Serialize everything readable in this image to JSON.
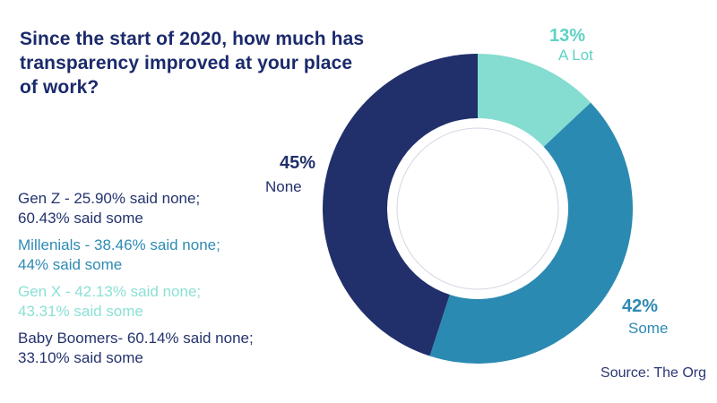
{
  "title": {
    "lines": [
      "Since the start of 2020, how much has",
      "transparency improved at your place",
      "of work?"
    ],
    "color": "#1b2a6b"
  },
  "chart_data": {
    "type": "pie",
    "variant": "donut",
    "title": "Since the start of 2020, how much has transparency improved at your place of work?",
    "units": "percent",
    "start_angle_deg": 0,
    "direction": "clockwise",
    "slices": [
      {
        "label": "A Lot",
        "value": 13,
        "pct_label": "13%",
        "color": "#85dcd1",
        "label_color": "#5fd2c5"
      },
      {
        "label": "Some",
        "value": 42,
        "pct_label": "42%",
        "color": "#2b8ab1",
        "label_color": "#2e8ab3"
      },
      {
        "label": "None",
        "value": 45,
        "pct_label": "45%",
        "color": "#21306b",
        "label_color": "#21306b"
      }
    ],
    "inner_ring_color": "#d4d6e3",
    "legend_position": "around-slices"
  },
  "annotations": [
    {
      "lines": [
        "Gen Z - 25.90% said none;",
        "60.43% said some"
      ],
      "color": "#24336e"
    },
    {
      "lines": [
        "Millenials - 38.46% said none;",
        "44% said some"
      ],
      "color": "#2e8ab3"
    },
    {
      "lines": [
        "Gen X - 42.13% said none;",
        "43.31% said some"
      ],
      "color": "#8ce0d6"
    },
    {
      "lines": [
        "Baby Boomers- 60.14% said none;",
        "33.10% said some"
      ],
      "color": "#24336e"
    }
  ],
  "source": {
    "text": "Source: The Org",
    "color": "#2a3874"
  }
}
